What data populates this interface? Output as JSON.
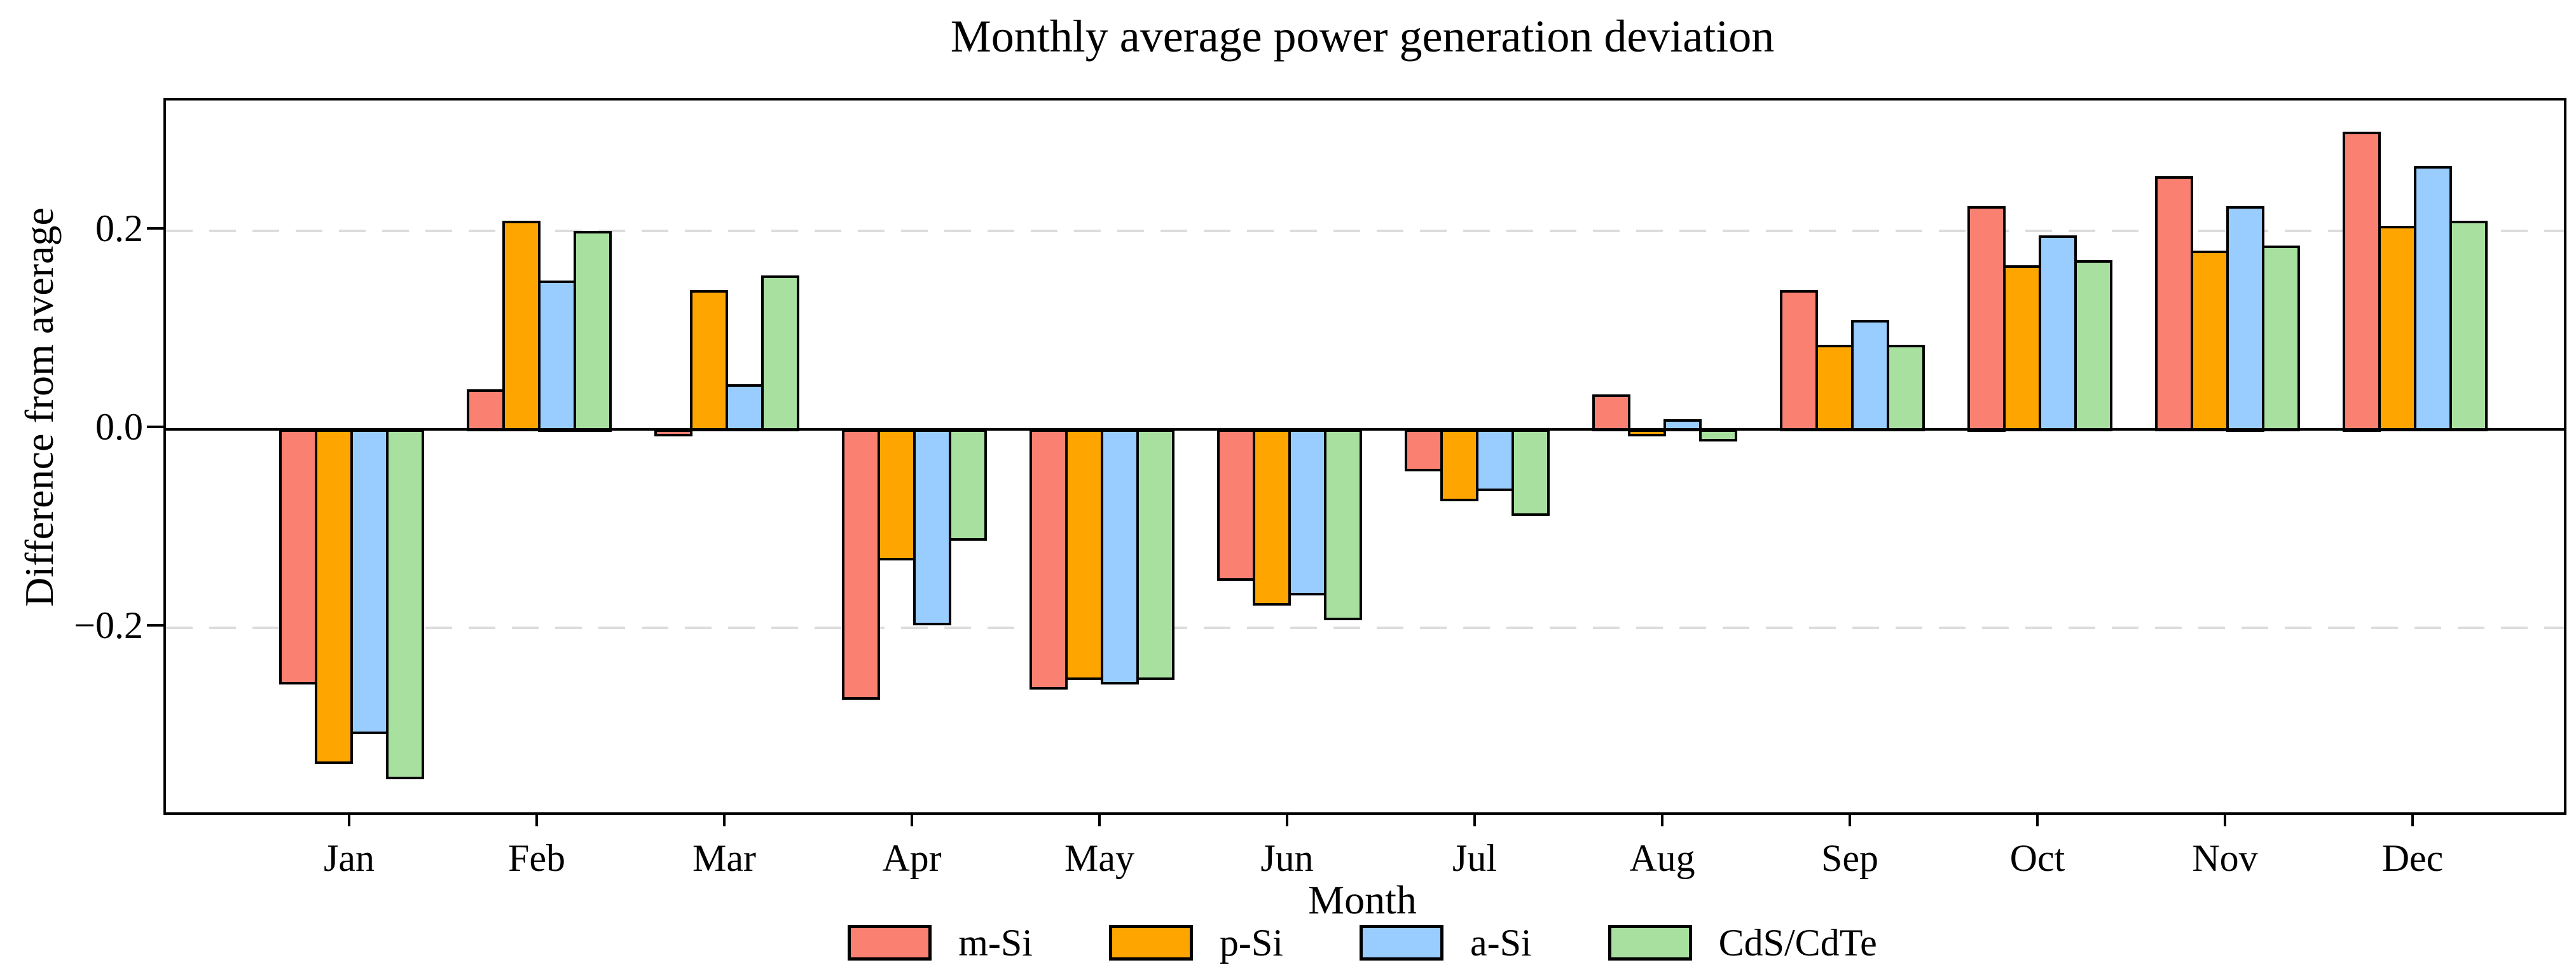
{
  "title": "Monthly average power generation deviation",
  "xlabel": "Month",
  "ylabel": "Difference from average",
  "chart_data": {
    "type": "bar",
    "title": "Monthly average power generation deviation",
    "xlabel": "Month",
    "ylabel": "Difference from average",
    "categories": [
      "Jan",
      "Feb",
      "Mar",
      "Apr",
      "May",
      "Jun",
      "Jul",
      "Aug",
      "Sep",
      "Oct",
      "Nov",
      "Dec"
    ],
    "series": [
      {
        "name": "m-Si",
        "color": "#FA8072",
        "values": [
          -0.255,
          0.04,
          -0.005,
          -0.27,
          -0.26,
          -0.15,
          -0.04,
          0.035,
          0.14,
          0.225,
          0.255,
          0.3
        ]
      },
      {
        "name": "p-Si",
        "color": "#FFA500",
        "values": [
          -0.335,
          0.21,
          0.14,
          -0.13,
          -0.25,
          -0.175,
          -0.07,
          -0.005,
          0.085,
          0.165,
          0.18,
          0.205
        ]
      },
      {
        "name": "a-Si",
        "color": "#99CCFF",
        "values": [
          -0.305,
          0.15,
          0.045,
          -0.195,
          -0.255,
          -0.165,
          -0.06,
          0.01,
          0.11,
          0.195,
          0.225,
          0.265
        ]
      },
      {
        "name": "CdS/CdTe",
        "color": "#A8E0A0",
        "values": [
          -0.35,
          0.2,
          0.155,
          -0.11,
          -0.25,
          -0.19,
          -0.085,
          -0.01,
          0.085,
          0.17,
          0.185,
          0.21
        ]
      }
    ],
    "yticks": [
      {
        "value": 0.2,
        "label": "0.2"
      },
      {
        "value": 0.0,
        "label": "0.0"
      },
      {
        "value": -0.2,
        "label": "−0.2"
      }
    ],
    "gridlines": [
      0.2,
      -0.2
    ],
    "grid": "dashed-horizontal",
    "ylim": [
      -0.386,
      0.331
    ],
    "zero_line": true,
    "legend_position": "bottom",
    "bar_edge_color": "#000000",
    "grid_color": "#dcdcdc",
    "background_color": "#ffffff"
  }
}
